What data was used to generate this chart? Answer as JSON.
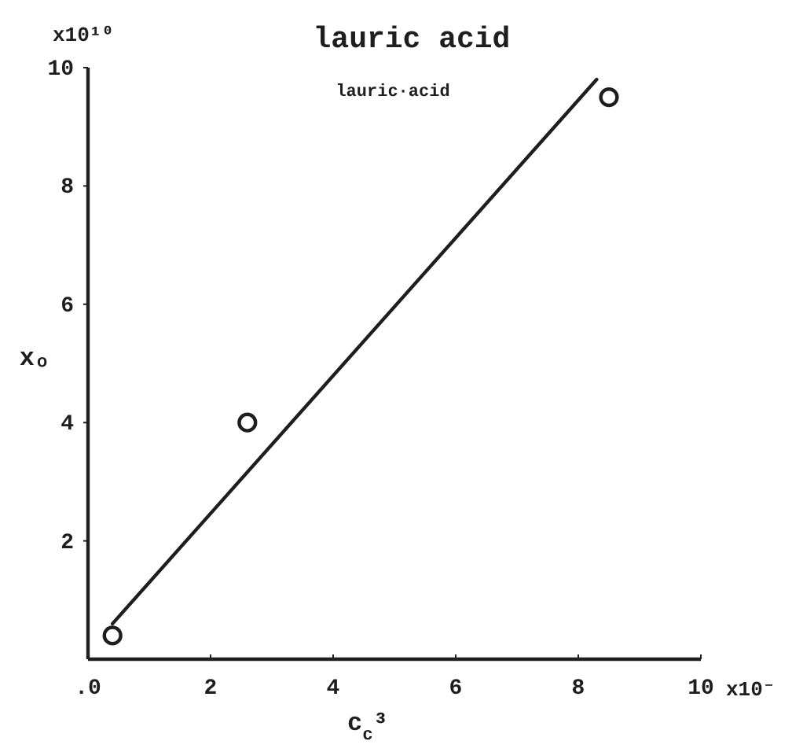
{
  "chart_data": {
    "type": "scatter",
    "title": "lauric acid",
    "subtitle": "lauric·acid",
    "xlabel": "c$_{c}$³",
    "ylabel": "xₒ",
    "annotations": [
      "x10¹⁰",
      "x10⁻"
    ],
    "xlim": [
      0,
      10
    ],
    "ylim": [
      0,
      10
    ],
    "xticks": [
      {
        "value": 0,
        "label": ".0"
      },
      2,
      4,
      6,
      8,
      10
    ],
    "yticks": [
      2,
      4,
      6,
      8,
      10
    ],
    "grid": false,
    "series": [
      {
        "marker": "circle",
        "color": "#1e1e1e",
        "x": [
          0.4,
          2.6,
          8.5
        ],
        "values": [
          0.4,
          4.0,
          9.5
        ]
      },
      {
        "type": "line",
        "color": "#1e1e1e",
        "line_style": "solid",
        "x": [
          0.4,
          8.3
        ],
        "values": [
          0.6,
          9.8
        ]
      }
    ]
  }
}
